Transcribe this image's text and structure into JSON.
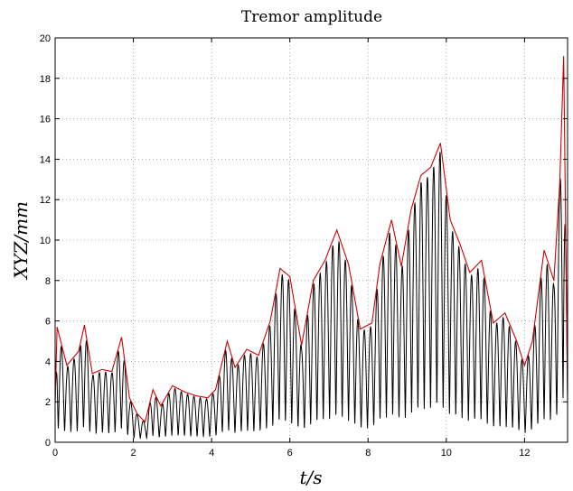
{
  "chart_data": {
    "type": "line",
    "title": "Tremor amplitude",
    "xlabel": "t/s",
    "ylabel": "XYZ/mm",
    "xlim": [
      0,
      13.1
    ],
    "ylim": [
      0,
      20
    ],
    "xticks": [
      "0",
      "2",
      "4",
      "6",
      "8",
      "10",
      "12"
    ],
    "yticks": [
      "0",
      "2",
      "4",
      "6",
      "8",
      "10",
      "12",
      "14",
      "16",
      "18",
      "20"
    ],
    "grid": true,
    "oscillation_frequency_hz": 6.2,
    "series": [
      {
        "name": "",
        "color": "#000000",
        "style": "oscillating signal",
        "t": [
          0,
          0.05,
          0.3,
          0.6,
          0.75,
          0.95,
          1.2,
          1.45,
          1.7,
          1.9,
          2.1,
          2.3,
          2.5,
          2.7,
          3.0,
          3.3,
          3.6,
          3.9,
          4.1,
          4.4,
          4.6,
          4.9,
          5.2,
          5.5,
          5.75,
          6.0,
          6.3,
          6.6,
          6.9,
          7.2,
          7.5,
          7.8,
          8.1,
          8.3,
          8.6,
          8.85,
          9.1,
          9.35,
          9.6,
          9.85,
          10.1,
          10.35,
          10.6,
          10.9,
          11.2,
          11.5,
          11.8,
          12.0,
          12.2,
          12.5,
          12.75,
          12.9,
          13.0,
          13.1
        ],
        "envelope": [
          2.0,
          5.7,
          3.8,
          4.5,
          5.8,
          3.4,
          3.6,
          3.5,
          5.2,
          2.2,
          1.4,
          1.0,
          2.6,
          1.8,
          2.8,
          2.5,
          2.3,
          2.2,
          2.6,
          5.0,
          3.7,
          4.6,
          4.3,
          6.0,
          8.6,
          8.2,
          4.8,
          8.0,
          9.0,
          10.5,
          8.8,
          5.6,
          5.9,
          8.8,
          11.0,
          8.7,
          11.5,
          13.2,
          13.6,
          14.8,
          11.0,
          9.8,
          8.4,
          9.0,
          5.9,
          6.4,
          5.0,
          3.8,
          5.0,
          9.5,
          8.0,
          12.8,
          19.1,
          2.5
        ]
      },
      {
        "name": "",
        "color": "#d10000",
        "style": "upper envelope",
        "t": [
          0,
          0.05,
          0.3,
          0.6,
          0.75,
          0.95,
          1.2,
          1.45,
          1.7,
          1.9,
          2.1,
          2.3,
          2.5,
          2.7,
          3.0,
          3.3,
          3.6,
          3.9,
          4.1,
          4.4,
          4.6,
          4.9,
          5.2,
          5.5,
          5.75,
          6.0,
          6.3,
          6.6,
          6.9,
          7.2,
          7.5,
          7.8,
          8.1,
          8.3,
          8.6,
          8.85,
          9.1,
          9.35,
          9.6,
          9.85,
          10.1,
          10.35,
          10.6,
          10.9,
          11.2,
          11.5,
          11.8,
          12.0,
          12.2,
          12.5,
          12.75,
          12.9,
          13.0,
          13.1
        ],
        "values": [
          2.0,
          5.7,
          3.8,
          4.5,
          5.8,
          3.4,
          3.6,
          3.5,
          5.2,
          2.2,
          1.4,
          1.0,
          2.6,
          1.8,
          2.8,
          2.5,
          2.3,
          2.2,
          2.6,
          5.0,
          3.7,
          4.6,
          4.3,
          6.0,
          8.6,
          8.2,
          4.8,
          8.0,
          9.0,
          10.5,
          8.8,
          5.6,
          5.9,
          8.8,
          11.0,
          8.7,
          11.5,
          13.2,
          13.6,
          14.8,
          11.0,
          9.8,
          8.4,
          9.0,
          5.9,
          6.4,
          5.0,
          3.8,
          5.0,
          9.5,
          8.0,
          12.8,
          19.1,
          2.5
        ]
      }
    ]
  }
}
